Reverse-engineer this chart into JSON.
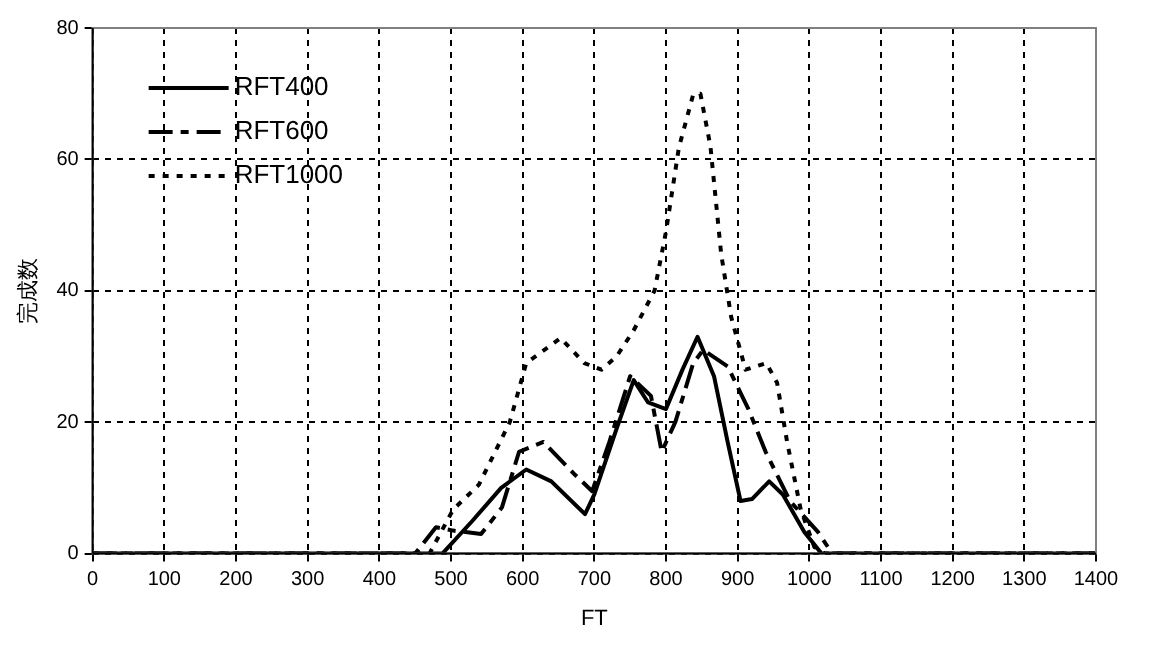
{
  "chart_data": {
    "type": "line",
    "xlabel": "FT",
    "ylabel": "完成数",
    "xlim": [
      0,
      1400
    ],
    "ylim": [
      0,
      80
    ],
    "xticks": [
      0,
      100,
      200,
      300,
      400,
      500,
      600,
      700,
      800,
      900,
      1000,
      1100,
      1200,
      1300,
      1400
    ],
    "yticks": [
      0,
      20,
      40,
      60,
      80
    ],
    "grid": true,
    "legend": "top left",
    "marker": "none",
    "series": [
      {
        "name": "RFT400",
        "color": "#000000",
        "line_style": "solid",
        "x": [
          0,
          488,
          530,
          570,
          605,
          640,
          687,
          700,
          731,
          755,
          775,
          800,
          823,
          844,
          867,
          886,
          904,
          920,
          944,
          963,
          993,
          1017,
          1400
        ],
        "values": [
          0,
          0,
          5,
          10,
          12.8,
          11,
          6,
          9,
          19,
          26.4,
          23,
          22,
          28,
          33,
          27,
          17,
          8,
          8.3,
          11,
          9,
          3.3,
          0,
          0
        ]
      },
      {
        "name": "RFT600",
        "color": "#000000",
        "line_style": "dashed",
        "x": [
          0,
          450,
          479,
          503,
          542,
          571,
          595,
          629,
          673,
          697,
          721,
          750,
          779,
          794,
          813,
          838,
          852,
          886,
          915,
          939,
          973,
          1012,
          1032,
          1400
        ],
        "values": [
          0,
          0,
          4,
          3.5,
          3,
          7,
          15.5,
          17,
          12,
          9.5,
          17,
          27,
          24,
          15.5,
          20,
          29,
          31,
          28.5,
          22,
          15.5,
          8,
          3.3,
          0,
          0
        ]
      },
      {
        "name": "RFT1000",
        "color": "#000000",
        "line_style": "dotted",
        "x": [
          0,
          470,
          503,
          539,
          582,
          605,
          653,
          686,
          710,
          731,
          755,
          784,
          800,
          818,
          838,
          848,
          862,
          877,
          891,
          911,
          940,
          955,
          969,
          988,
          1007,
          1022,
          1400
        ],
        "values": [
          0,
          0,
          6.7,
          10.5,
          20,
          29,
          32.8,
          29,
          28,
          30,
          34,
          40,
          49,
          61.8,
          69.9,
          70,
          62,
          45.6,
          36,
          28,
          29,
          26,
          17,
          6.7,
          1,
          0,
          0
        ]
      }
    ]
  }
}
